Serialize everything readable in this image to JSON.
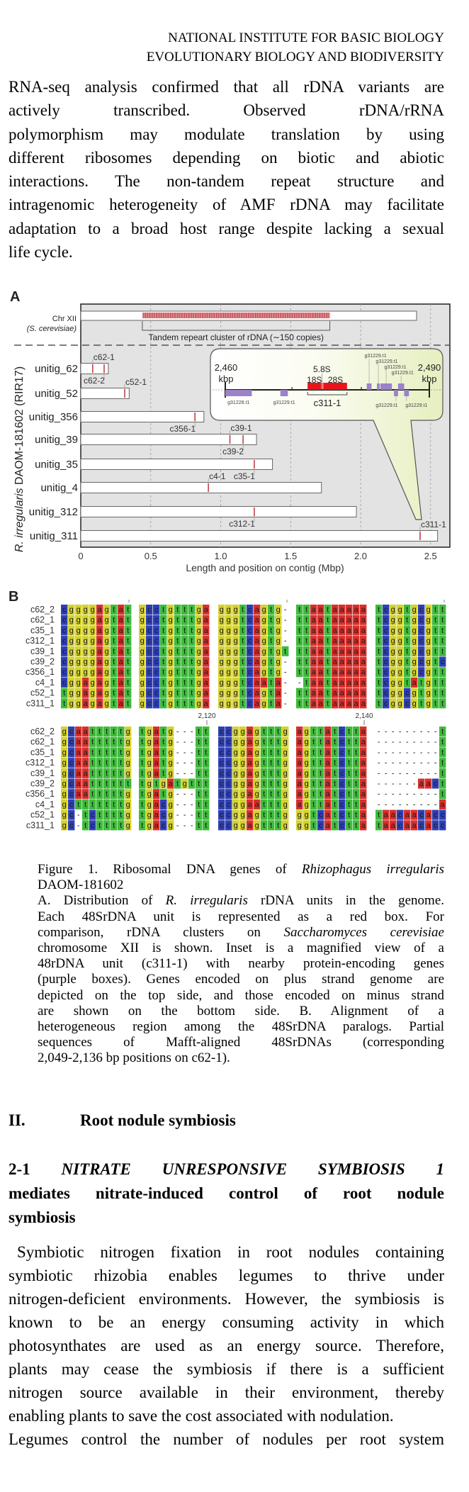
{
  "header": {
    "line1": "NATIONAL INSTITUTE FOR BASIC BIOLOGY",
    "line2": "EVOLUTIONARY BIOLOGY AND BIODIVERSITY"
  },
  "body": {
    "lines": [
      [
        {
          "t": "RNA-seq analysis confirmed that all rDNA variants are"
        }
      ],
      [
        {
          "t": "actively transcribed. Observed rDNA/rRNA"
        }
      ],
      [
        {
          "t": "polymorphism may modulate translation by using"
        }
      ],
      [
        {
          "t": "different ribosomes depending on biotic and abiotic"
        }
      ],
      [
        {
          "t": "interactions. The non-tandem repeat structure and"
        }
      ],
      [
        {
          "t": "intragenomic heterogeneity of AMF rDNA may facilitate"
        }
      ],
      [
        {
          "t": "adaptation to a broad host range despite lacking a sexual"
        }
      ],
      [
        {
          "t": "life cycle."
        }
      ]
    ]
  },
  "figureA": {
    "panel_label": "A",
    "chromosome": {
      "label": "Chr XII",
      "species": "(S. cerevisiae)",
      "length": 2.4,
      "cluster_start": 0.44,
      "cluster_end": 1.78,
      "cluster_label": "Tandem repeart cluster of rDNA (∼150 copies)"
    },
    "y_label_italic": "R. irregularis",
    "y_label_rest": " DAOM-181602 (RIR17)",
    "x_label": "Length and position on contig (Mbp)",
    "x_ticks": [
      0,
      0.5,
      1.0,
      1.5,
      2.0,
      2.5
    ],
    "x_tick_labels": [
      "0",
      "0.5",
      "1.0",
      "1.5",
      "2.0",
      "2.5"
    ],
    "x_range": [
      0,
      2.64
    ],
    "unitigs": [
      {
        "name": "unitig_62",
        "length": 0.197,
        "units": [
          {
            "label": "c62-1",
            "pos": 0.085,
            "side": "top"
          },
          {
            "label": "c62-2",
            "pos": 0.167,
            "side": "bottom"
          }
        ]
      },
      {
        "name": "unitig_52",
        "length": 0.346,
        "units": [
          {
            "label": "c52-1",
            "pos": 0.314,
            "side": "top"
          }
        ]
      },
      {
        "name": "unitig_356",
        "length": 0.88,
        "units": [
          {
            "label": "c356-1",
            "pos": 0.816,
            "side": "bottom"
          }
        ]
      },
      {
        "name": "unitig_39",
        "length": 1.256,
        "units": [
          {
            "label": "c39-1",
            "pos": 1.066,
            "side": "top"
          },
          {
            "label": "c39-2",
            "pos": 1.16,
            "side": "bottom"
          }
        ]
      },
      {
        "name": "unitig_35",
        "length": 1.37,
        "units": [
          {
            "label": "c35-1",
            "pos": 1.24,
            "side": "bottom"
          }
        ]
      },
      {
        "name": "unitig_4",
        "length": 1.72,
        "units": [
          {
            "label": "c4-1",
            "pos": 0.912,
            "side": "top"
          }
        ]
      },
      {
        "name": "unitig_312",
        "length": 1.97,
        "units": [
          {
            "label": "c312-1",
            "pos": 1.24,
            "side": "bottom"
          }
        ]
      },
      {
        "name": "unitig_311",
        "length": 2.55,
        "units": [
          {
            "label": "c311-1",
            "pos": 2.425,
            "side": "top"
          }
        ]
      }
    ],
    "inset": {
      "start_kbp": 2460,
      "end_kbp": 2490,
      "start_label": "2,460",
      "end_label": "2,490",
      "unit": "kbp",
      "unit_label": "c311-1",
      "rrna": [
        {
          "label": "18S",
          "start": 2472.1,
          "end": 2474.1
        },
        {
          "label": "5.8S",
          "start": 2474.15,
          "end": 2474.3
        },
        {
          "label": "28S",
          "start": 2474.4,
          "end": 2477.9
        }
      ],
      "genes": [
        {
          "label": "g31228.t1",
          "start": 2460.0,
          "end": 2463.9,
          "strand": "minus"
        },
        {
          "label": "g31229.t1",
          "start": 2468.1,
          "end": 2469.2,
          "strand": "minus"
        },
        {
          "label": "g31229.t1",
          "start": 2480.8,
          "end": 2481.5,
          "strand": "plus"
        },
        {
          "label": "g31229.t1",
          "start": 2482.3,
          "end": 2482.7,
          "strand": "plus"
        },
        {
          "label": "g31229.t1",
          "start": 2482.8,
          "end": 2484.5,
          "strand": "plus"
        },
        {
          "label": "g31229.t1",
          "start": 2485.4,
          "end": 2486.3,
          "strand": "plus"
        },
        {
          "label": "g31229.t1",
          "start": 2484.8,
          "end": 2485.4,
          "strand": "minus"
        },
        {
          "label": "g31229.t1",
          "start": 2486.3,
          "end": 2487.0,
          "strand": "minus"
        }
      ]
    },
    "colors": {
      "plot_bg": "#e3e3e3",
      "rdna": "#c0404a",
      "gene": "#9b82c9",
      "rrna": "#e8141c",
      "inset_tint": "#e6efbf"
    }
  },
  "figureB": {
    "panel_label": "B",
    "position_labels": [
      "2,120",
      "2,140"
    ],
    "colors": {
      "a": "#d9302c",
      "c": "#2f3fb5",
      "g": "#d4d22e",
      "t": "#3fbb3c"
    },
    "blocks": [
      {
        "rows": [
          {
            "name": "c62_2",
            "seq": "cggggagtat gcctgtttga gggtcagtg- ttaataaaaa tcggtgcgtt"
          },
          {
            "name": "c62_1",
            "seq": "cggggagtat gcctgtttga gggtcagtg- ttaataaaaa tcggtgcgtt"
          },
          {
            "name": "c35_1",
            "seq": "cggggagtat gcctgtttga gggtcagtg- ttaataaaaa tcggtgcgtt"
          },
          {
            "name": "c312_1",
            "seq": "cggggagtat gcctgtttga gggtcagtg- ttaataaaaa tcggtgcgtt"
          },
          {
            "name": "c39_1",
            "seq": "cggggagtat gcctgtttga gggtcagtgt ttaataaaaa tcggtgcgtt"
          },
          {
            "name": "c39_2",
            "seq": "cggggagtat gcctgtttga gggtcagtg- ttaataaaaa tcggtgcgtc"
          },
          {
            "name": "c356_1",
            "seq": "cggggagtat gcctgtttga gggtcagtg- ttaataaaaa tcggtgcgtt"
          },
          {
            "name": "c4_1",
            "seq": "cggagagtat gcctgtttga gggtcaata- -taataaaaa tcggtatgtt"
          },
          {
            "name": "c52_1",
            "seq": "tggagagtat gcctgtttga gggtcagta- ttaataaaaa tcggcgtgtt"
          },
          {
            "name": "c311_1",
            "seq": "tggagagtat gcctgtttga gggtcagta- ttaataaaaa tcggcgtgtt"
          }
        ]
      },
      {
        "rows": [
          {
            "name": "c62_2",
            "seq": "gcaatttttg tgatg---tt ccggagtttg agttatctta ---------t"
          },
          {
            "name": "c62_1",
            "seq": "gcaatttttg tgatg---tt ccggagtttg agttatctta ---------t"
          },
          {
            "name": "c35_1",
            "seq": "gcaatttttg tgatg---tt ccggagtttg agttatctta ---------t"
          },
          {
            "name": "c312_1",
            "seq": "gcaatttttg tgatg---tt ccggagtttg agttatctta ---------t"
          },
          {
            "name": "c39_1",
            "seq": "gcaatttttg tgatg---tt ccggagtttg agttatctta ---------t"
          },
          {
            "name": "c39_2",
            "seq": "gcaatttttt tgtgatgttt ccggagtttg agttatctta ------aact"
          },
          {
            "name": "c356_1",
            "seq": "gcaatttttg tgatg---tt ccggagtttg agttatctta ---------t"
          },
          {
            "name": "c4_1",
            "seq": "gctttttttg tgacg---tt ccggaatttg agttatctta ---------a"
          },
          {
            "name": "c52_1",
            "seq": "gc-tcttttg tgacg---tt ccggagtttg ggtcatctta taacaacacc"
          },
          {
            "name": "c311_1",
            "seq": "gc-tcttttg tgacg---tt ccggagtttg ggtcatctta taacaacacc"
          }
        ]
      }
    ]
  },
  "caption": {
    "lines": [
      [
        {
          "t": "Figure 1. Ribosomal DNA genes of "
        },
        {
          "t": "Rhizophagus irregularis",
          "i": true
        }
      ],
      [
        {
          "t": "DAOM-181602"
        }
      ],
      [
        {
          "t": "A. Distribution of "
        },
        {
          "t": "R. irregularis",
          "i": true
        },
        {
          "t": " rDNA units in the genome."
        }
      ],
      [
        {
          "t": "Each 48SrDNA unit is represented as a red box. For"
        }
      ],
      [
        {
          "t": "comparison, rDNA clusters on "
        },
        {
          "t": "Saccharomyces cerevisiae",
          "i": true
        }
      ],
      [
        {
          "t": "chromosome XII is shown. Inset is a magnified view of a"
        }
      ],
      [
        {
          "t": "48rDNA unit (c311-1) with nearby protein-encoding genes"
        }
      ],
      [
        {
          "t": "(purple boxes). Genes encoded on plus strand genome are"
        }
      ],
      [
        {
          "t": "depicted on the top side, and those encoded on minus strand"
        }
      ],
      [
        {
          "t": "are shown on the bottom side. B. Alignment of a"
        }
      ],
      [
        {
          "t": "heterogeneous region among the 48SrDNA paralogs. Partial"
        }
      ],
      [
        {
          "t": "sequences of Mafft-aligned 48SrDNAs (corresponding"
        }
      ],
      [
        {
          "t": "2,049-2,136 bp positions on c62-1)."
        }
      ]
    ]
  },
  "section": {
    "number": "II.",
    "title": "Root nodule symbiosis"
  },
  "subsection": {
    "lines": [
      [
        {
          "t": "2-1 "
        },
        {
          "t": "NITRATE UNRESPONSIVE SYMBIOSIS 1",
          "i": true
        }
      ],
      [
        {
          "t": "mediates nitrate-induced control of root nodule"
        }
      ],
      [
        {
          "t": "symbiosis"
        }
      ]
    ]
  },
  "paragraph": {
    "lines": [
      [
        {
          "t": "Symbiotic nitrogen fixation in root nodules containing"
        }
      ],
      [
        {
          "t": "symbiotic rhizobia enables legumes to thrive under"
        }
      ],
      [
        {
          "t": "nitrogen-deficient environments. However, the symbiosis is"
        }
      ],
      [
        {
          "t": "known to be an energy consuming activity in which"
        }
      ],
      [
        {
          "t": "photosynthates are used as an energy source. Therefore,"
        }
      ],
      [
        {
          "t": "plants may cease the symbiosis if there is a sufficient"
        }
      ],
      [
        {
          "t": "nitrogen source available in their environment, thereby"
        }
      ],
      [
        {
          "t": "enabling plants to save the cost associated with nodulation."
        }
      ],
      [
        {
          "t": "Legumes control the number of nodules per root system"
        }
      ]
    ]
  }
}
